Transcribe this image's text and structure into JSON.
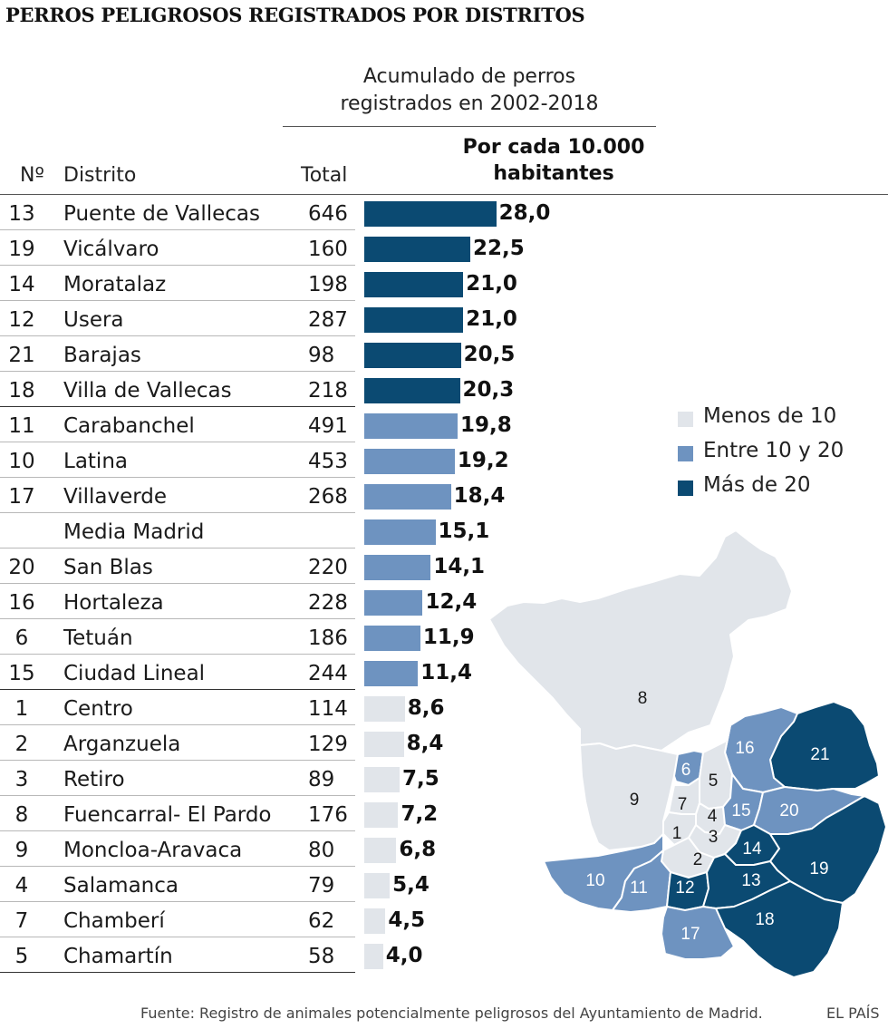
{
  "title": "PERROS PELIGROSOS REGISTRADOS POR DISTRITOS",
  "subheading": [
    "Acumulado de perros",
    "registrados en 2002-2018"
  ],
  "headers": {
    "num": "Nº",
    "distrito": "Distrito",
    "total": "Total",
    "rate": [
      "Por cada 10.000",
      "habitantes"
    ]
  },
  "colors": {
    "low": "#e1e5ea",
    "mid": "#6e93c0",
    "high": "#0b4a72"
  },
  "legend": [
    {
      "label": "Menos de 10",
      "color": "#e1e5ea"
    },
    {
      "label": "Entre 10 y 20",
      "color": "#6e93c0"
    },
    {
      "label": "Más de 20",
      "color": "#0b4a72"
    }
  ],
  "chart_data": {
    "type": "bar",
    "orientation": "horizontal",
    "value_label": "Por cada 10.000 habitantes",
    "xlim": [
      0,
      28
    ],
    "rows": [
      {
        "num": "13",
        "district": "Puente de Vallecas",
        "total": "646",
        "value": 28.0,
        "label": "28,0",
        "class": "high"
      },
      {
        "num": "19",
        "district": "Vicálvaro",
        "total": "160",
        "value": 22.5,
        "label": "22,5",
        "class": "high"
      },
      {
        "num": "14",
        "district": "Moratalaz",
        "total": "198",
        "value": 21.0,
        "label": "21,0",
        "class": "high"
      },
      {
        "num": "12",
        "district": "Usera",
        "total": "287",
        "value": 21.0,
        "label": "21,0",
        "class": "high"
      },
      {
        "num": "21",
        "district": "Barajas",
        "total": "98",
        "value": 20.5,
        "label": "20,5",
        "class": "high"
      },
      {
        "num": "18",
        "district": "Villa de Vallecas",
        "total": "218",
        "value": 20.3,
        "label": "20,3",
        "class": "high"
      },
      {
        "num": "11",
        "district": "Carabanchel",
        "total": "491",
        "value": 19.8,
        "label": "19,8",
        "class": "mid"
      },
      {
        "num": "10",
        "district": "Latina",
        "total": "453",
        "value": 19.2,
        "label": "19,2",
        "class": "mid"
      },
      {
        "num": "17",
        "district": "Villaverde",
        "total": "268",
        "value": 18.4,
        "label": "18,4",
        "class": "mid"
      },
      {
        "num": "",
        "district": "Media Madrid",
        "total": "",
        "value": 15.1,
        "label": "15,1",
        "class": "mid"
      },
      {
        "num": "20",
        "district": "San Blas",
        "total": "220",
        "value": 14.1,
        "label": "14,1",
        "class": "mid"
      },
      {
        "num": "16",
        "district": "Hortaleza",
        "total": "228",
        "value": 12.4,
        "label": "12,4",
        "class": "mid"
      },
      {
        "num": "6",
        "district": "Tetuán",
        "total": "186",
        "value": 11.9,
        "label": "11,9",
        "class": "mid"
      },
      {
        "num": "15",
        "district": "Ciudad Lineal",
        "total": "244",
        "value": 11.4,
        "label": "11,4",
        "class": "mid"
      },
      {
        "num": "1",
        "district": "Centro",
        "total": "114",
        "value": 8.6,
        "label": "8,6",
        "class": "low"
      },
      {
        "num": "2",
        "district": "Arganzuela",
        "total": "129",
        "value": 8.4,
        "label": "8,4",
        "class": "low"
      },
      {
        "num": "3",
        "district": "Retiro",
        "total": "89",
        "value": 7.5,
        "label": "7,5",
        "class": "low"
      },
      {
        "num": "8",
        "district": "Fuencarral- El Pardo",
        "total": "176",
        "value": 7.2,
        "label": "7,2",
        "class": "low"
      },
      {
        "num": "9",
        "district": "Moncloa-Aravaca",
        "total": "80",
        "value": 6.8,
        "label": "6,8",
        "class": "low"
      },
      {
        "num": "4",
        "district": "Salamanca",
        "total": "79",
        "value": 5.4,
        "label": "5,4",
        "class": "low"
      },
      {
        "num": "7",
        "district": "Chamberí",
        "total": "62",
        "value": 4.5,
        "label": "4,5",
        "class": "low"
      },
      {
        "num": "5",
        "district": "Chamartín",
        "total": "58",
        "value": 4.0,
        "label": "4,0",
        "class": "low"
      }
    ]
  },
  "map": {
    "districts": [
      {
        "id": "8",
        "class": "low"
      },
      {
        "id": "9",
        "class": "low"
      },
      {
        "id": "21",
        "class": "high"
      },
      {
        "id": "16",
        "class": "mid"
      },
      {
        "id": "6",
        "class": "mid"
      },
      {
        "id": "5",
        "class": "low"
      },
      {
        "id": "7",
        "class": "low"
      },
      {
        "id": "4",
        "class": "low"
      },
      {
        "id": "15",
        "class": "mid"
      },
      {
        "id": "20",
        "class": "mid"
      },
      {
        "id": "1",
        "class": "low"
      },
      {
        "id": "3",
        "class": "low"
      },
      {
        "id": "2",
        "class": "low"
      },
      {
        "id": "14",
        "class": "high"
      },
      {
        "id": "19",
        "class": "high"
      },
      {
        "id": "10",
        "class": "mid"
      },
      {
        "id": "11",
        "class": "mid"
      },
      {
        "id": "12",
        "class": "high"
      },
      {
        "id": "13",
        "class": "high"
      },
      {
        "id": "18",
        "class": "high"
      },
      {
        "id": "17",
        "class": "mid"
      }
    ]
  },
  "source": "Fuente: Registro de animales potencialmente peligrosos del Ayuntamiento de Madrid.",
  "brand": "EL PAÍS"
}
